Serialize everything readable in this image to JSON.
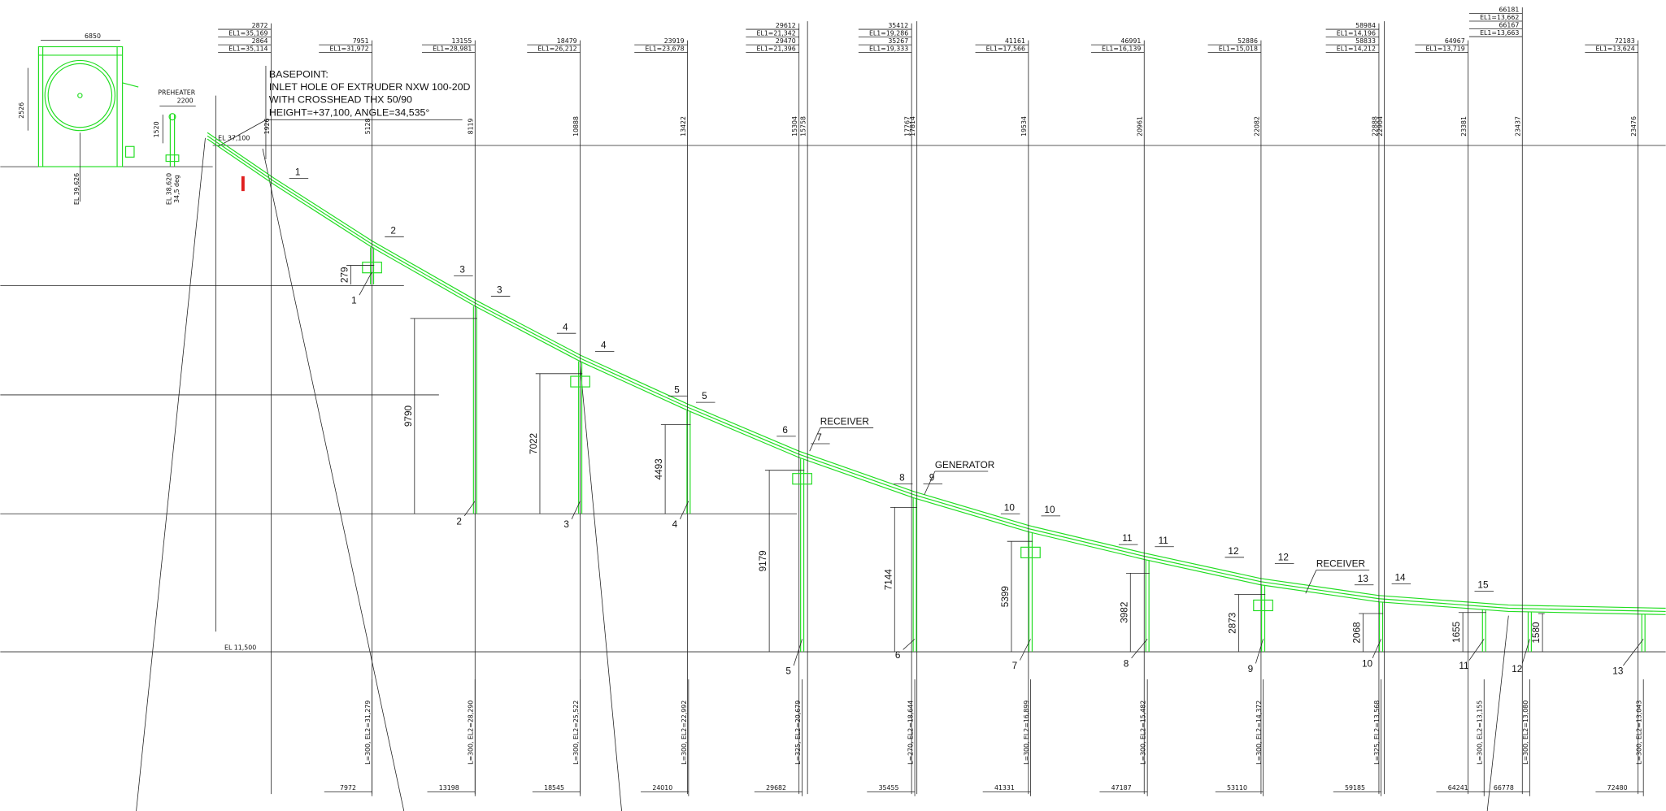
{
  "notes": {
    "basepoint": [
      "BASEPOINT:",
      "INLET HOLE OF EXTRUDER NXW 100-20D",
      "WITH CROSSHEAD THX 50/90",
      "HEIGHT=+37,100, ANGLE=34,535°"
    ]
  },
  "left_labels": {
    "machine_width": "6850",
    "machine_height": "2526",
    "el_machine": "EL 39,626",
    "preheater": "PREHEATER",
    "preheater_width": "2200",
    "preheater_height": "1520",
    "el_preheater": "EL 38,620",
    "angle": "34,5 deg",
    "el_basepoint": "EL 37,100",
    "el_ground": "EL 11,500"
  },
  "stations": [
    {
      "dims": [
        "2872",
        "2864"
      ],
      "elevations": [
        "EL1=35,169",
        "EL1=35,114"
      ],
      "heights": [
        "1926"
      ]
    },
    {
      "dims": [
        "7951"
      ],
      "elevations": [
        "EL1=31,972"
      ],
      "heights": [
        "5128"
      ]
    },
    {
      "dims": [
        "13155"
      ],
      "elevations": [
        "EL1=28,981"
      ],
      "heights": [
        "8119"
      ]
    },
    {
      "dims": [
        "18479"
      ],
      "elevations": [
        "EL1=26,212"
      ],
      "heights": [
        "10888"
      ]
    },
    {
      "dims": [
        "23919"
      ],
      "elevations": [
        "EL1=23,678"
      ],
      "heights": [
        "13422"
      ]
    },
    {
      "dims": [
        "29612",
        "29470"
      ],
      "elevations": [
        "EL1=21,342",
        "EL1=21,396"
      ],
      "heights": [
        "15304",
        "15758"
      ]
    },
    {
      "dims": [
        "35412",
        "35267"
      ],
      "elevations": [
        "EL1=19,286",
        "EL1=19,333"
      ],
      "heights": [
        "17767",
        "17814"
      ]
    },
    {
      "dims": [
        "41161"
      ],
      "elevations": [
        "EL1=17,566"
      ],
      "heights": [
        "19534"
      ]
    },
    {
      "dims": [
        "46991"
      ],
      "elevations": [
        "EL1=16,139"
      ],
      "heights": [
        "20961"
      ]
    },
    {
      "dims": [
        "52886"
      ],
      "elevations": [
        "EL1=15,018"
      ],
      "heights": [
        "22082"
      ]
    },
    {
      "dims": [
        "58984",
        "58833"
      ],
      "elevations": [
        "EL1=14,196",
        "EL1=14,212"
      ],
      "heights": [
        "22888",
        "22904"
      ]
    },
    {
      "dims": [
        "64967"
      ],
      "elevations": [
        "EL1=13,719"
      ],
      "heights": [
        "23381"
      ]
    },
    {
      "dims": [
        "66181",
        "66167"
      ],
      "elevations": [
        "EL1=13,662",
        "EL1=13,663"
      ],
      "heights": [
        "23437"
      ]
    },
    {
      "dims": [
        "72183"
      ],
      "elevations": [
        "EL1=13,624"
      ],
      "heights": [
        "23476"
      ]
    }
  ],
  "supports": [
    {
      "number": "1",
      "height": "279",
      "bottom_label": "L=300, EL2=31,279",
      "bottom_dim": "7972"
    },
    {
      "number": "2",
      "height": "9790",
      "bottom_label": "L=300, EL2=28,290",
      "bottom_dim": "13198"
    },
    {
      "number": "3",
      "height": "7022",
      "bottom_label": "L=300, EL2=25,522",
      "bottom_dim": "18545"
    },
    {
      "number": "4",
      "height": "4493",
      "bottom_label": "L=300, EL2=22,992",
      "bottom_dim": "24010"
    },
    {
      "number": "5",
      "height": "9179",
      "bottom_label": "L=325, EL2=20,679",
      "bottom_dim": "29682"
    },
    {
      "number": "6",
      "height": "7144",
      "bottom_label": "L=270, EL2=18,644",
      "bottom_dim": "35455"
    },
    {
      "number": "7",
      "height": "5399",
      "bottom_label": "L=300, EL2=16,899",
      "bottom_dim": "41331"
    },
    {
      "number": "8",
      "height": "3982",
      "bottom_label": "L=300, EL2=15,482",
      "bottom_dim": "47187"
    },
    {
      "number": "9",
      "height": "2873",
      "bottom_label": "L=300, EL2=14,372",
      "bottom_dim": "53110"
    },
    {
      "number": "10",
      "height": "2068",
      "bottom_label": "L=325, EL2=13,568",
      "bottom_dim": "59185"
    },
    {
      "number": "11",
      "height": "1655",
      "bottom_label": "L=300, EL2=13,155",
      "bottom_dim": "64241"
    },
    {
      "number": "12",
      "height": "1580",
      "bottom_label": "L=300, EL2=13,080",
      "bottom_dim": "66778"
    },
    {
      "number": "13",
      "bottom_label": "L=300, EL2=13,043",
      "bottom_dim": "72480"
    }
  ],
  "node_labels": [
    "1",
    "2",
    "3",
    "3",
    "4",
    "4",
    "5",
    "5",
    "6",
    "7",
    "8",
    "9",
    "10",
    "10",
    "11",
    "11",
    "12",
    "12",
    "13",
    "14",
    "15"
  ],
  "callouts": [
    "RECEIVER",
    "GENERATOR",
    "RECEIVER"
  ]
}
